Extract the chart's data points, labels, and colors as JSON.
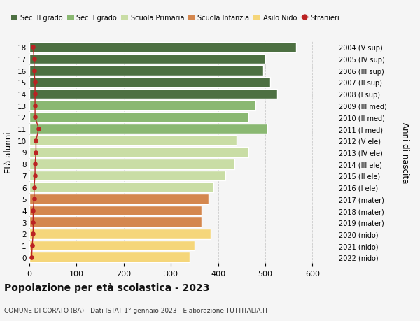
{
  "ages": [
    0,
    1,
    2,
    3,
    4,
    5,
    6,
    7,
    8,
    9,
    10,
    11,
    12,
    13,
    14,
    15,
    16,
    17,
    18
  ],
  "right_labels": [
    "2022 (nido)",
    "2021 (nido)",
    "2020 (nido)",
    "2019 (mater)",
    "2018 (mater)",
    "2017 (mater)",
    "2016 (I ele)",
    "2015 (II ele)",
    "2014 (III ele)",
    "2013 (IV ele)",
    "2012 (V ele)",
    "2011 (I med)",
    "2010 (II med)",
    "2009 (III med)",
    "2008 (I sup)",
    "2007 (II sup)",
    "2006 (III sup)",
    "2005 (IV sup)",
    "2004 (V sup)"
  ],
  "bar_values": [
    340,
    350,
    385,
    365,
    365,
    380,
    390,
    415,
    435,
    465,
    440,
    505,
    465,
    480,
    525,
    510,
    495,
    500,
    565
  ],
  "bar_colors": [
    "#f5d67a",
    "#f5d67a",
    "#f5d67a",
    "#d4874e",
    "#d4874e",
    "#d4874e",
    "#c9dda5",
    "#c9dda5",
    "#c9dda5",
    "#c9dda5",
    "#c9dda5",
    "#8ab872",
    "#8ab872",
    "#8ab872",
    "#4d7042",
    "#4d7042",
    "#4d7042",
    "#4d7042",
    "#4d7042"
  ],
  "stranieri_values": [
    5,
    6,
    8,
    8,
    8,
    10,
    10,
    12,
    12,
    14,
    14,
    20,
    12,
    12,
    12,
    12,
    10,
    10,
    8
  ],
  "legend_labels": [
    "Sec. II grado",
    "Sec. I grado",
    "Scuola Primaria",
    "Scuola Infanzia",
    "Asilo Nido",
    "Stranieri"
  ],
  "legend_colors": [
    "#4d7042",
    "#8ab872",
    "#c9dda5",
    "#d4874e",
    "#f5d67a",
    "#bb2222"
  ],
  "title": "Popolazione per età scolastica - 2023",
  "subtitle": "COMUNE DI CORATO (BA) - Dati ISTAT 1° gennaio 2023 - Elaborazione TUTTITALIA.IT",
  "ylabel": "Età alunni",
  "right_ylabel": "Anni di nascita",
  "xlim": [
    0,
    650
  ],
  "xticks": [
    0,
    100,
    200,
    300,
    400,
    500,
    600
  ],
  "bg_color": "#f5f5f5",
  "grid_color": "#cccccc"
}
